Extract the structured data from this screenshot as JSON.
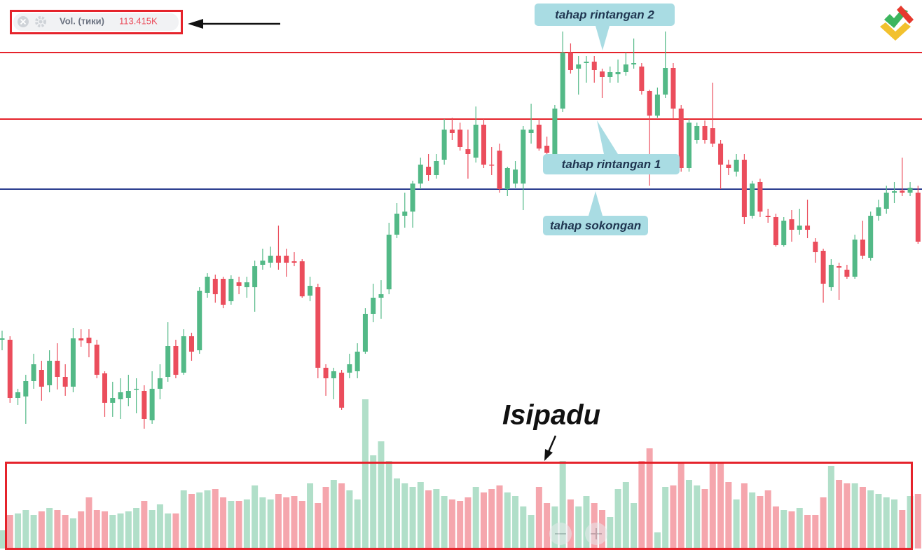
{
  "chart_data": {
    "type": "candlestick",
    "legend": {
      "name": "Vol. (тики)",
      "value_label": "113.415K"
    },
    "annotation": "Isipadu",
    "up_color": "#53b987",
    "down_color": "#eb4d5c",
    "ylim": [
      12,
      800
    ],
    "y2lim": [
      0,
      220
    ],
    "levels": [
      {
        "label": "tahap rintangan 2",
        "value": 725,
        "color": "#e5232b"
      },
      {
        "label": "tahap rintangan 1",
        "value": 630,
        "color": "#e5232b"
      },
      {
        "label": "tahap sokongan",
        "value": 530,
        "color": "#2b3d8f"
      }
    ],
    "open": [
      315,
      315,
      232,
      234,
      256,
      272,
      250,
      285,
      262,
      248,
      317,
      318,
      308,
      267,
      225,
      230,
      232,
      244,
      242,
      200,
      245,
      262,
      306,
      268,
      320,
      300,
      382,
      402,
      402,
      370,
      397,
      390,
      390,
      422,
      425,
      435,
      435,
      427,
      427,
      378,
      390,
      275,
      260,
      268,
      268,
      270,
      298,
      352,
      375,
      387,
      465,
      492,
      498,
      538,
      562,
      550,
      572,
      615,
      615,
      587,
      575,
      622,
      565,
      585,
      530,
      538,
      538,
      610,
      622,
      592,
      580,
      645,
      725,
      702,
      710,
      712,
      698,
      690,
      694,
      697,
      708,
      705,
      670,
      635,
      665,
      703,
      645,
      560,
      600,
      620,
      617,
      595,
      565,
      555,
      572,
      492,
      540,
      492,
      490,
      450,
      487,
      472,
      478,
      455,
      442,
      390,
      420,
      415,
      405,
      458,
      432,
      492,
      502,
      525,
      528,
      525,
      525
    ],
    "high": [
      328,
      320,
      245,
      265,
      295,
      285,
      300,
      310,
      280,
      332,
      330,
      330,
      315,
      270,
      255,
      260,
      265,
      260,
      250,
      270,
      280,
      340,
      315,
      330,
      325,
      390,
      410,
      408,
      405,
      407,
      405,
      405,
      428,
      445,
      448,
      478,
      445,
      440,
      430,
      405,
      395,
      280,
      275,
      272,
      295,
      310,
      360,
      395,
      400,
      482,
      510,
      525,
      542,
      575,
      580,
      580,
      630,
      632,
      625,
      615,
      648,
      630,
      590,
      595,
      562,
      570,
      620,
      652,
      630,
      605,
      650,
      755,
      738,
      720,
      720,
      720,
      702,
      705,
      715,
      725,
      745,
      710,
      672,
      675,
      755,
      710,
      650,
      630,
      625,
      628,
      682,
      600,
      572,
      580,
      580,
      542,
      545,
      502,
      495,
      490,
      500,
      502,
      515,
      460,
      445,
      430,
      425,
      422,
      465,
      485,
      498,
      515,
      535,
      540,
      575,
      540,
      535
    ],
    "low": [
      300,
      225,
      222,
      195,
      245,
      228,
      240,
      244,
      235,
      240,
      305,
      290,
      260,
      205,
      205,
      202,
      220,
      210,
      188,
      195,
      230,
      255,
      260,
      265,
      285,
      295,
      375,
      368,
      360,
      365,
      380,
      375,
      355,
      415,
      418,
      415,
      405,
      420,
      375,
      370,
      260,
      235,
      230,
      215,
      260,
      260,
      295,
      340,
      345,
      380,
      460,
      475,
      475,
      530,
      542,
      545,
      565,
      600,
      585,
      545,
      568,
      560,
      550,
      525,
      520,
      532,
      500,
      595,
      585,
      570,
      575,
      640,
      695,
      665,
      682,
      682,
      660,
      682,
      682,
      692,
      702,
      665,
      535,
      632,
      660,
      630,
      555,
      555,
      595,
      595,
      590,
      530,
      550,
      548,
      480,
      488,
      490,
      482,
      448,
      448,
      455,
      465,
      460,
      425,
      368,
      385,
      372,
      402,
      402,
      430,
      428,
      485,
      495,
      510,
      520,
      520,
      452
    ],
    "close": [
      317,
      232,
      240,
      256,
      280,
      248,
      285,
      262,
      248,
      317,
      314,
      310,
      265,
      225,
      232,
      240,
      242,
      245,
      202,
      245,
      260,
      306,
      265,
      320,
      298,
      385,
      405,
      380,
      365,
      402,
      392,
      397,
      420,
      428,
      435,
      425,
      425,
      425,
      377,
      392,
      275,
      260,
      270,
      218,
      280,
      298,
      352,
      375,
      380,
      465,
      495,
      498,
      538,
      565,
      550,
      570,
      615,
      610,
      590,
      580,
      622,
      565,
      564,
      530,
      560,
      558,
      615,
      615,
      588,
      582,
      645,
      725,
      700,
      708,
      712,
      700,
      690,
      697,
      697,
      708,
      710,
      670,
      635,
      665,
      703,
      645,
      560,
      625,
      620,
      600,
      595,
      565,
      560,
      572,
      490,
      538,
      498,
      490,
      450,
      485,
      472,
      478,
      472,
      440,
      395,
      422,
      418,
      405,
      458,
      435,
      492,
      504,
      525,
      527,
      525,
      532,
      455
    ],
    "volume": [
      26,
      48,
      50,
      55,
      48,
      53,
      58,
      55,
      48,
      43,
      53,
      73,
      55,
      53,
      48,
      50,
      53,
      58,
      68,
      55,
      63,
      50,
      50,
      83,
      78,
      80,
      83,
      85,
      73,
      68,
      68,
      70,
      90,
      73,
      70,
      78,
      73,
      75,
      68,
      93,
      65,
      88,
      98,
      93,
      83,
      70,
      213,
      133,
      153,
      125,
      100,
      93,
      88,
      95,
      83,
      85,
      75,
      70,
      68,
      73,
      88,
      80,
      85,
      90,
      80,
      75,
      60,
      48,
      88,
      65,
      60,
      125,
      70,
      60,
      75,
      65,
      55,
      45,
      85,
      95,
      65,
      125,
      143,
      23,
      88,
      90,
      123,
      98,
      90,
      85,
      123,
      123,
      95,
      70,
      93,
      80,
      75,
      83,
      60,
      55,
      53,
      58,
      48,
      48,
      73,
      118,
      98,
      93,
      93,
      88,
      83,
      78,
      73,
      70,
      55,
      75,
      78
    ]
  }
}
